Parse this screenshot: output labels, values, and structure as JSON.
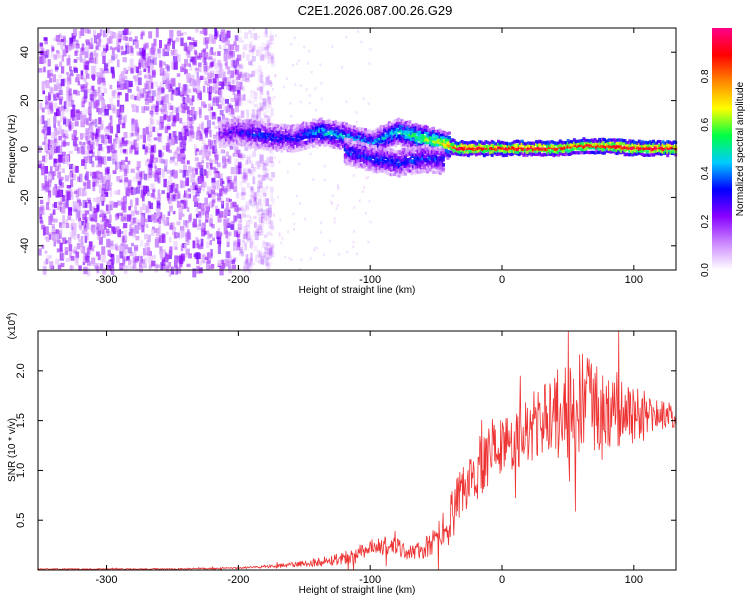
{
  "title": "C2E1.2026.087.00.26.G29",
  "chart_data": [
    {
      "type": "heatmap",
      "xlabel": "Height of straight line (km)",
      "ylabel": "Frequency (Hz)",
      "xlim": [
        -352,
        132
      ],
      "ylim": [
        -50,
        50
      ],
      "x_ticks": [
        "-300",
        "-200",
        "-100",
        "0",
        "100"
      ],
      "x_tick_values": [
        -300,
        -200,
        -100,
        0,
        100
      ],
      "y_ticks": [
        "-40",
        "-20",
        "0",
        "20",
        "40"
      ],
      "y_tick_values": [
        -40,
        -20,
        0,
        20,
        40
      ],
      "colorbar": {
        "label": "Normalized spectral amplitude",
        "range": [
          0,
          1
        ],
        "ticks": [
          "0.0",
          "0.2",
          "0.4",
          "0.6",
          "0.8"
        ],
        "tick_values": [
          0.0,
          0.2,
          0.4,
          0.6,
          0.8
        ],
        "colors": [
          "#ffffff",
          "#cc88ff",
          "#8800ff",
          "#0000ff",
          "#00ccff",
          "#00ff44",
          "#ffff00",
          "#ff8800",
          "#ff0000",
          "#ff0088"
        ]
      },
      "ridge": {
        "x": [
          -215,
          -200,
          -180,
          -160,
          -140,
          -120,
          -100,
          -80,
          -60,
          -45,
          -35,
          -20,
          0,
          20,
          40,
          60,
          80,
          100,
          120,
          132
        ],
        "freq": [
          7,
          8,
          6,
          5,
          8,
          6,
          3,
          8,
          5,
          3,
          1,
          1,
          1,
          1,
          1,
          2,
          2,
          1,
          1,
          1
        ],
        "amplitude": [
          0.2,
          0.3,
          0.35,
          0.3,
          0.45,
          0.45,
          0.4,
          0.5,
          0.6,
          0.7,
          0.95,
          0.9,
          0.92,
          0.9,
          0.92,
          0.88,
          0.9,
          0.92,
          0.95,
          0.9
        ]
      },
      "secondary_ridge": {
        "x": [
          -120,
          -100,
          -80,
          -60,
          -45
        ],
        "freq": [
          0,
          -3,
          -5,
          -3,
          -4
        ]
      },
      "noise_region_x": [
        -352,
        -200
      ]
    },
    {
      "type": "line",
      "xlabel": "Height of straight line (km)",
      "ylabel": "SNR (10 * v/v)",
      "multiplier": "(x10",
      "multiplier_exp": "4",
      "multiplier_close": ")",
      "xlim": [
        -352,
        132
      ],
      "ylim": [
        0,
        2.4
      ],
      "x_ticks": [
        "-300",
        "-200",
        "-100",
        "0",
        "100"
      ],
      "x_tick_values": [
        -300,
        -200,
        -100,
        0,
        100
      ],
      "y_ticks": [
        "0.5",
        "1.0",
        "1.5",
        "2.0"
      ],
      "y_tick_values": [
        0.5,
        1.0,
        1.5,
        2.0
      ],
      "color": "#ee3333",
      "series": [
        {
          "name": "SNR",
          "x": [
            -352,
            -300,
            -250,
            -200,
            -170,
            -150,
            -130,
            -110,
            -100,
            -90,
            -80,
            -70,
            -60,
            -50,
            -40,
            -30,
            -20,
            -10,
            0,
            10,
            20,
            30,
            40,
            50,
            60,
            70,
            80,
            90,
            100,
            110,
            120,
            132
          ],
          "y": [
            0.01,
            0.01,
            0.01,
            0.02,
            0.04,
            0.06,
            0.1,
            0.15,
            0.2,
            0.25,
            0.22,
            0.18,
            0.2,
            0.3,
            0.5,
            0.75,
            1.0,
            1.2,
            1.25,
            1.3,
            1.4,
            1.5,
            1.55,
            1.6,
            1.65,
            1.6,
            1.55,
            1.6,
            1.55,
            1.55,
            1.55,
            1.55
          ],
          "spread": [
            0.005,
            0.005,
            0.006,
            0.008,
            0.02,
            0.03,
            0.06,
            0.08,
            0.1,
            0.12,
            0.1,
            0.08,
            0.1,
            0.15,
            0.25,
            0.3,
            0.35,
            0.35,
            0.3,
            0.3,
            0.35,
            0.4,
            0.45,
            0.5,
            0.55,
            0.5,
            0.45,
            0.4,
            0.3,
            0.2,
            0.15,
            0.12
          ]
        }
      ]
    }
  ]
}
